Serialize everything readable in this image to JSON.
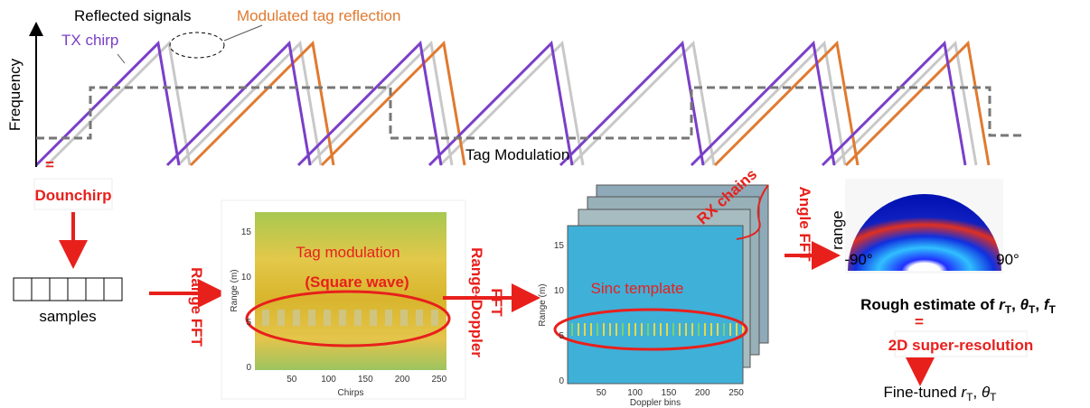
{
  "top": {
    "reflected": "Reflected signals",
    "modulated": "Modulated tag reflection",
    "tx": "TX chirp",
    "axis": "Frequency",
    "tag_mod": "Tag Modulation"
  },
  "steps": {
    "dechirp": "Dounchirp",
    "samples": "samples",
    "range_fft": "Range FFT",
    "range_doppler": [
      "Range-Doppler",
      "FFT"
    ],
    "rx_chains": "RX chains",
    "angle_fft": "Angle FFT",
    "super_res": "2D super-resolution"
  },
  "plot1": {
    "title": "Tag modulation",
    "subtitle": "(Square wave)",
    "y_label": "Range (m)",
    "x_label": "Chirps",
    "yticks": [
      "0",
      "5",
      "10",
      "15"
    ],
    "xticks": [
      "50",
      "100",
      "150",
      "200",
      "250"
    ]
  },
  "plot2": {
    "title": "Sinc template",
    "y_label": "Range (m)",
    "x_label": "Doppler bins",
    "yticks": [
      "0",
      "5",
      "10",
      "15"
    ],
    "xticks": [
      "50",
      "100",
      "150",
      "200",
      "250"
    ]
  },
  "polar": {
    "y_label": "range",
    "left": "-90°",
    "right": "90°"
  },
  "rough": [
    "Rough estimate of ",
    "r",
    "T",
    ", ",
    "θ",
    "T",
    ", ",
    "f",
    "T"
  ],
  "fine": [
    "Fine-tuned ",
    "r",
    "T",
    ", ",
    "θ",
    "T"
  ]
}
